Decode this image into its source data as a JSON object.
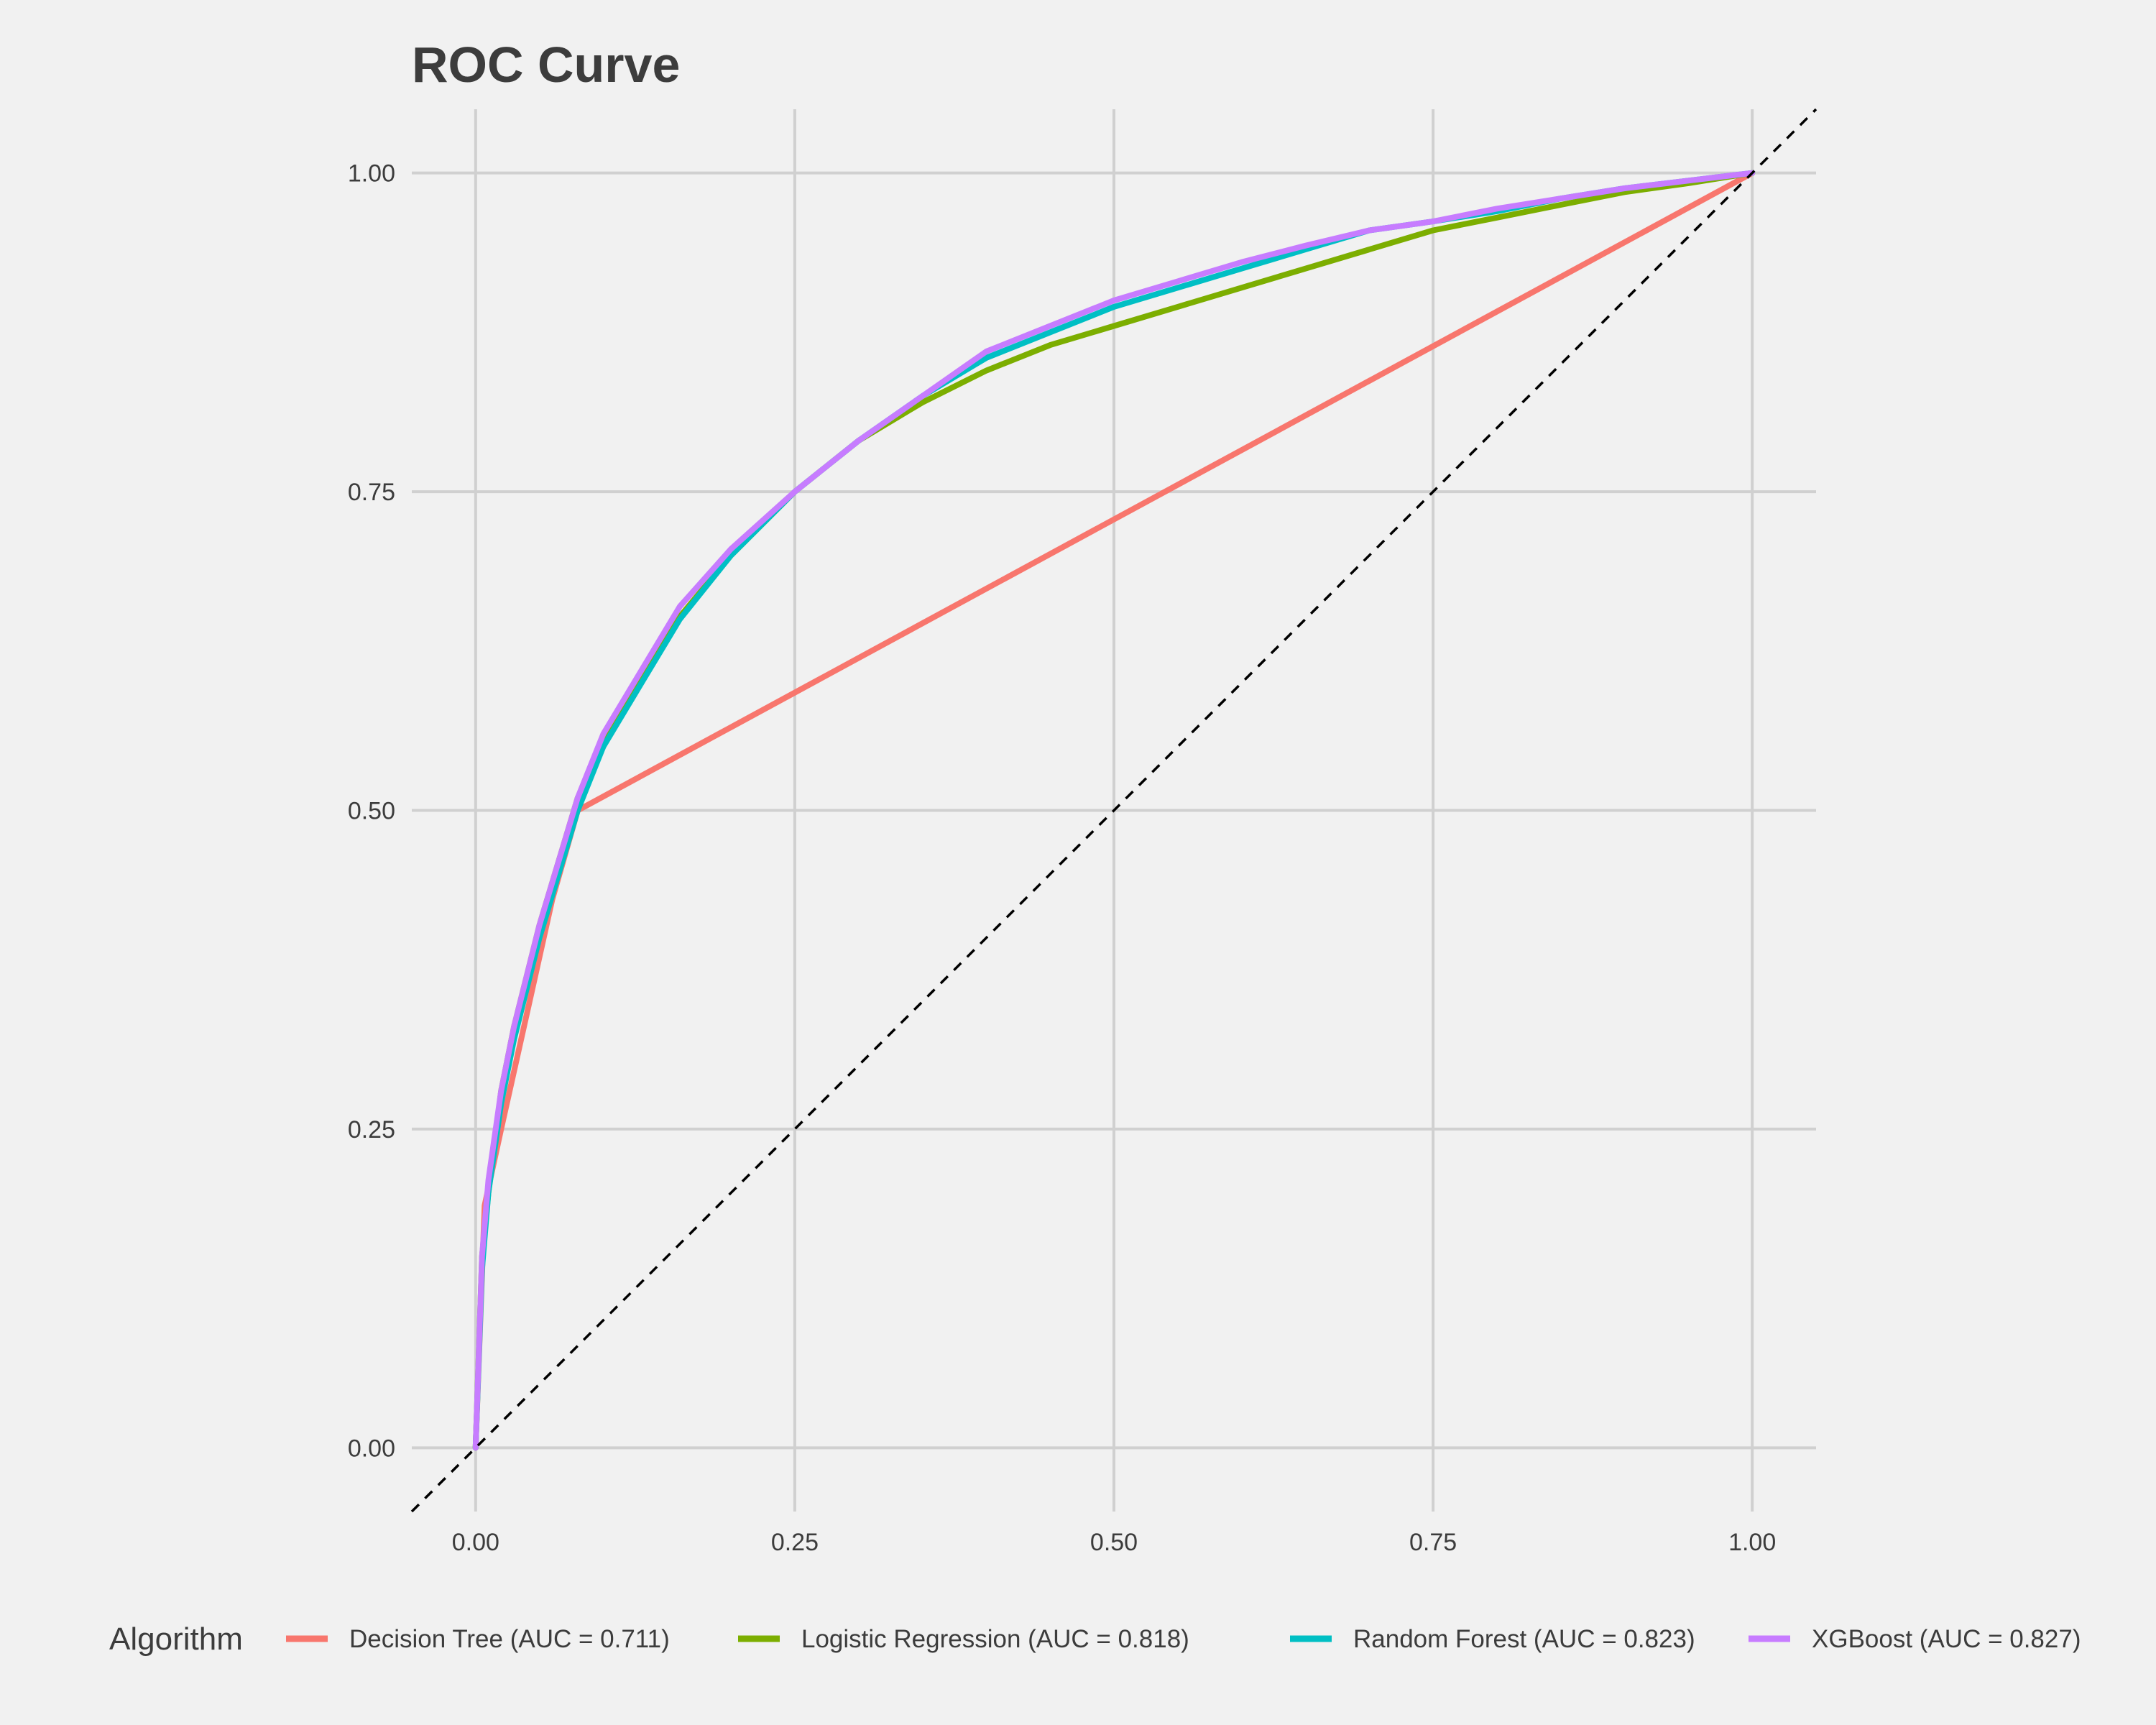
{
  "chart_data": {
    "type": "line",
    "title": "ROC Curve",
    "xlabel": "",
    "ylabel": "",
    "xlim": [
      -0.05,
      1.05
    ],
    "ylim": [
      -0.05,
      1.05
    ],
    "x_ticks": [
      "0.00",
      "0.25",
      "0.50",
      "0.75",
      "1.00"
    ],
    "y_ticks": [
      "0.00",
      "0.25",
      "0.50",
      "0.75",
      "1.00"
    ],
    "grid": true,
    "legend_position": "bottom",
    "legend_title": "Algorithm",
    "reference_line": {
      "style": "dashed",
      "color": "#000000",
      "points": [
        [
          -0.05,
          -0.05
        ],
        [
          1.05,
          1.05
        ]
      ]
    },
    "series": [
      {
        "name": "Decision Tree (AUC = 0.711)",
        "color": "#F8766D",
        "points": [
          [
            0,
            0
          ],
          [
            0.007,
            0.19
          ],
          [
            0.02,
            0.25
          ],
          [
            0.04,
            0.34
          ],
          [
            0.06,
            0.43
          ],
          [
            0.08,
            0.5
          ],
          [
            1,
            1
          ]
        ]
      },
      {
        "name": "Logistic Regression (AUC = 0.818)",
        "color": "#7CAE00",
        "points": [
          [
            0,
            0
          ],
          [
            0.005,
            0.15
          ],
          [
            0.01,
            0.2
          ],
          [
            0.02,
            0.28
          ],
          [
            0.03,
            0.33
          ],
          [
            0.05,
            0.41
          ],
          [
            0.08,
            0.51
          ],
          [
            0.11,
            0.57
          ],
          [
            0.15,
            0.64
          ],
          [
            0.2,
            0.7
          ],
          [
            0.25,
            0.75
          ],
          [
            0.3,
            0.79
          ],
          [
            0.35,
            0.82
          ],
          [
            0.4,
            0.845
          ],
          [
            0.45,
            0.865
          ],
          [
            0.5,
            0.88
          ],
          [
            0.55,
            0.895
          ],
          [
            0.6,
            0.91
          ],
          [
            0.65,
            0.925
          ],
          [
            0.7,
            0.94
          ],
          [
            0.75,
            0.955
          ],
          [
            0.8,
            0.965
          ],
          [
            0.85,
            0.975
          ],
          [
            0.9,
            0.985
          ],
          [
            0.95,
            0.992
          ],
          [
            1,
            1
          ]
        ]
      },
      {
        "name": "Random Forest (AUC = 0.823)",
        "color": "#00BFC4",
        "points": [
          [
            0,
            0
          ],
          [
            0.005,
            0.14
          ],
          [
            0.01,
            0.2
          ],
          [
            0.02,
            0.27
          ],
          [
            0.03,
            0.32
          ],
          [
            0.05,
            0.4
          ],
          [
            0.08,
            0.5
          ],
          [
            0.1,
            0.55
          ],
          [
            0.13,
            0.6
          ],
          [
            0.16,
            0.65
          ],
          [
            0.2,
            0.7
          ],
          [
            0.25,
            0.75
          ],
          [
            0.3,
            0.79
          ],
          [
            0.35,
            0.825
          ],
          [
            0.4,
            0.855
          ],
          [
            0.45,
            0.875
          ],
          [
            0.5,
            0.895
          ],
          [
            0.55,
            0.91
          ],
          [
            0.6,
            0.925
          ],
          [
            0.65,
            0.94
          ],
          [
            0.7,
            0.955
          ],
          [
            0.75,
            0.962
          ],
          [
            0.8,
            0.97
          ],
          [
            0.85,
            0.98
          ],
          [
            0.9,
            0.988
          ],
          [
            0.95,
            0.994
          ],
          [
            1,
            1
          ]
        ]
      },
      {
        "name": "XGBoost (AUC = 0.827)",
        "color": "#C77CFF",
        "points": [
          [
            0,
            0
          ],
          [
            0.005,
            0.15
          ],
          [
            0.01,
            0.21
          ],
          [
            0.02,
            0.28
          ],
          [
            0.03,
            0.33
          ],
          [
            0.05,
            0.41
          ],
          [
            0.08,
            0.51
          ],
          [
            0.1,
            0.56
          ],
          [
            0.13,
            0.61
          ],
          [
            0.16,
            0.66
          ],
          [
            0.2,
            0.705
          ],
          [
            0.25,
            0.75
          ],
          [
            0.3,
            0.79
          ],
          [
            0.35,
            0.825
          ],
          [
            0.4,
            0.86
          ],
          [
            0.45,
            0.88
          ],
          [
            0.5,
            0.9
          ],
          [
            0.55,
            0.915
          ],
          [
            0.6,
            0.93
          ],
          [
            0.65,
            0.943
          ],
          [
            0.7,
            0.955
          ],
          [
            0.75,
            0.962
          ],
          [
            0.8,
            0.972
          ],
          [
            0.85,
            0.98
          ],
          [
            0.9,
            0.988
          ],
          [
            0.95,
            0.994
          ],
          [
            1,
            1
          ]
        ]
      }
    ]
  }
}
